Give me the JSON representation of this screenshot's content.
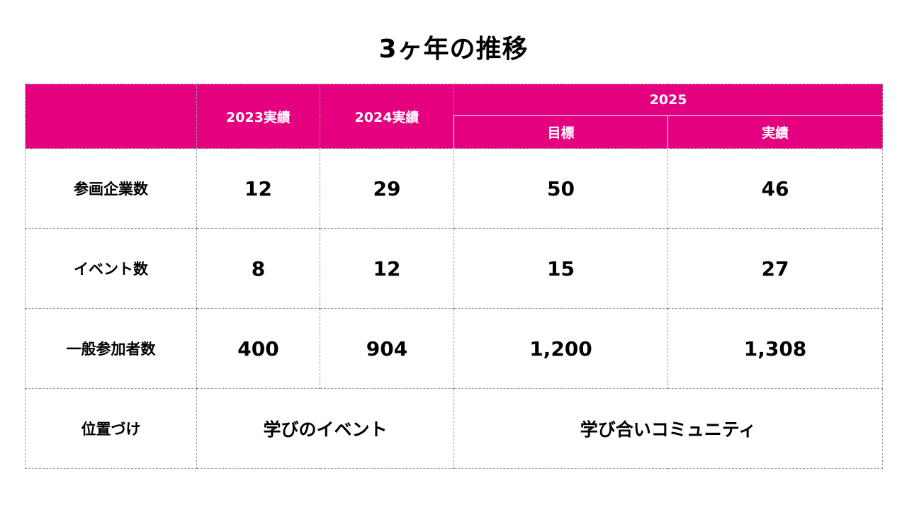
{
  "title": "3ヶ年の推移",
  "accent_color": "#e4007f",
  "header": {
    "col_2023": "2023実績",
    "col_2024": "2024実績",
    "col_2025": "2025",
    "col_2025_target": "目標",
    "col_2025_actual": "実績"
  },
  "rows": [
    {
      "label": "参画企業数",
      "v2023": "12",
      "v2024": "29",
      "v2025_target": "50",
      "v2025_actual": "46"
    },
    {
      "label": "イベント数",
      "v2023": "8",
      "v2024": "12",
      "v2025_target": "15",
      "v2025_actual": "27"
    },
    {
      "label": "一般参加者数",
      "v2023": "400",
      "v2024": "904",
      "v2025_target": "1,200",
      "v2025_actual": "1,308"
    }
  ],
  "positioning": {
    "label": "位置づけ",
    "early": "学びのイベント",
    "current": "学び合いコミュニティ"
  }
}
